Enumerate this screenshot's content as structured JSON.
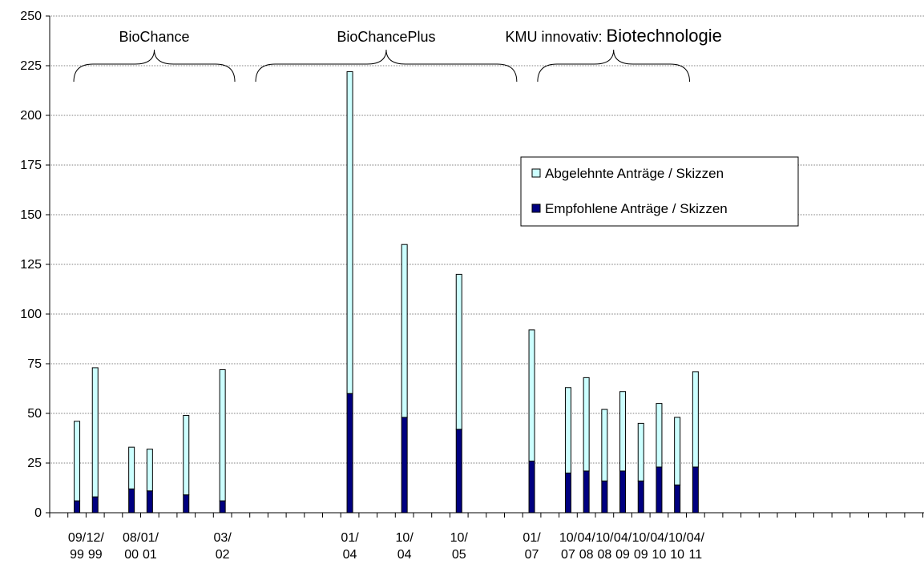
{
  "chart_data": {
    "type": "bar",
    "stacked": true,
    "grid": "horizontal",
    "legend_placement": "inside-right",
    "ylim": [
      0,
      250
    ],
    "yticks": [
      0,
      25,
      50,
      75,
      100,
      125,
      150,
      175,
      200,
      225,
      250
    ],
    "x_slots": 48,
    "categories": [
      {
        "slot": 1,
        "label": [
          "09/",
          "99"
        ]
      },
      {
        "slot": 2,
        "label": [
          "12/",
          "99"
        ]
      },
      {
        "slot": 4,
        "label": [
          "08/",
          "00"
        ]
      },
      {
        "slot": 5,
        "label": [
          "01/",
          "01"
        ]
      },
      {
        "slot": 7,
        "label": [
          "",
          ""
        ]
      },
      {
        "slot": 9,
        "label": [
          "03/",
          "02"
        ]
      },
      {
        "slot": 16,
        "label": [
          "01/",
          "04"
        ]
      },
      {
        "slot": 19,
        "label": [
          "10/",
          "04"
        ]
      },
      {
        "slot": 22,
        "label": [
          "10/",
          "05"
        ]
      },
      {
        "slot": 26,
        "label": [
          "01/",
          "07"
        ]
      },
      {
        "slot": 28,
        "label": [
          "10/",
          "07"
        ]
      },
      {
        "slot": 29,
        "label": [
          "04/",
          "08"
        ]
      },
      {
        "slot": 30,
        "label": [
          "10/",
          "08"
        ]
      },
      {
        "slot": 31,
        "label": [
          "04/",
          "09"
        ]
      },
      {
        "slot": 32,
        "label": [
          "10/",
          "09"
        ]
      },
      {
        "slot": 33,
        "label": [
          "04/",
          "10"
        ]
      },
      {
        "slot": 34,
        "label": [
          "10/",
          "10"
        ]
      },
      {
        "slot": 35,
        "label": [
          "04/",
          "11"
        ]
      }
    ],
    "series": [
      {
        "name": "Empfohlene Anträge / Skizzen",
        "color": "#000080",
        "values": [
          6,
          8,
          12,
          11,
          9,
          6,
          60,
          48,
          42,
          26,
          20,
          21,
          16,
          21,
          16,
          23,
          14,
          23
        ]
      },
      {
        "name": "Abgelehnte Anträge / Skizzen",
        "color": "#ccffff",
        "values": [
          40,
          65,
          21,
          21,
          40,
          66,
          162,
          87,
          78,
          66,
          43,
          47,
          36,
          40,
          29,
          32,
          34,
          48
        ]
      }
    ],
    "annotations": [
      {
        "text": "BioChance",
        "from_slot": 1,
        "to_slot": 9.5
      },
      {
        "text": "BioChancePlus",
        "from_slot": 11,
        "to_slot": 25
      },
      {
        "text_small": "KMU innovativ:",
        "text_big": "Biotechnologie",
        "from_slot": 26.5,
        "to_slot": 34.5
      }
    ]
  }
}
